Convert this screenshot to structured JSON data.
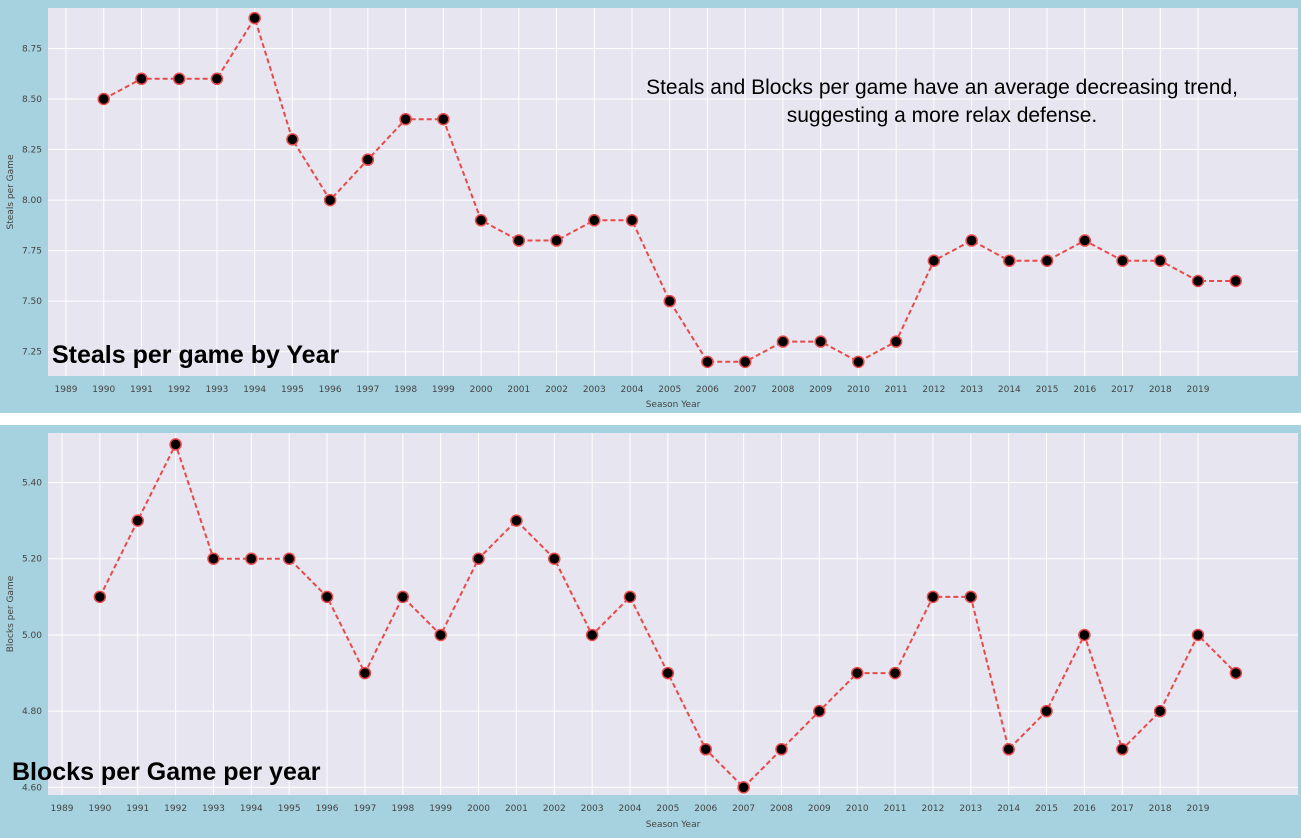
{
  "chart_data": [
    {
      "type": "line",
      "title": "Steals per game by Year",
      "xlabel": "Season Year",
      "ylabel": "Steals per Game",
      "annotation": "Steals and Blocks per game have an average decreasing trend, suggesting a more relax defense.",
      "tick_labels": [
        "1989",
        "1990",
        "1991",
        "1992",
        "1993",
        "1994",
        "1995",
        "1996",
        "1997",
        "1998",
        "1999",
        "2000",
        "2001",
        "2002",
        "2003",
        "2004",
        "2005",
        "2006",
        "2007",
        "2008",
        "2009",
        "2010",
        "2011",
        "2012",
        "2013",
        "2014",
        "2015",
        "2016",
        "2017",
        "2018",
        "2019"
      ],
      "yticks": [
        7.25,
        7.5,
        7.75,
        8.0,
        8.25,
        8.5,
        8.75
      ],
      "ylim": [
        7.13,
        8.95
      ],
      "grid": true,
      "line_color": "#e84a4a",
      "marker_color": "#000000",
      "series": [
        {
          "values": [
            8.5,
            8.6,
            8.6,
            8.6,
            8.9,
            8.3,
            8.0,
            8.2,
            8.4,
            8.4,
            7.9,
            7.8,
            7.8,
            7.9,
            7.9,
            7.5,
            7.2,
            7.2,
            7.3,
            7.3,
            7.2,
            7.3,
            7.7,
            7.8,
            7.7,
            7.7,
            7.8,
            7.7,
            7.7,
            7.6,
            7.6
          ]
        }
      ]
    },
    {
      "type": "line",
      "title": "Blocks per Game per year",
      "xlabel": "Season Year",
      "ylabel": "Blocks per Game",
      "tick_labels": [
        "1989",
        "1990",
        "1991",
        "1992",
        "1993",
        "1994",
        "1995",
        "1996",
        "1997",
        "1998",
        "1999",
        "2000",
        "2001",
        "2002",
        "2003",
        "2004",
        "2005",
        "2006",
        "2007",
        "2008",
        "2009",
        "2010",
        "2011",
        "2012",
        "2013",
        "2014",
        "2015",
        "2016",
        "2017",
        "2018",
        "2019"
      ],
      "yticks": [
        4.6,
        4.8,
        5.0,
        5.2,
        5.4
      ],
      "ylim": [
        4.58,
        5.53
      ],
      "grid": true,
      "line_color": "#e84a4a",
      "marker_color": "#000000",
      "series": [
        {
          "values": [
            5.1,
            5.3,
            5.5,
            5.2,
            5.2,
            5.2,
            5.1,
            4.9,
            5.1,
            5.0,
            5.2,
            5.3,
            5.2,
            5.0,
            5.1,
            4.9,
            4.7,
            4.6,
            4.7,
            4.8,
            4.9,
            4.9,
            5.1,
            5.1,
            4.7,
            4.8,
            5.0,
            4.7,
            4.8,
            5.0,
            4.9
          ]
        }
      ]
    }
  ]
}
